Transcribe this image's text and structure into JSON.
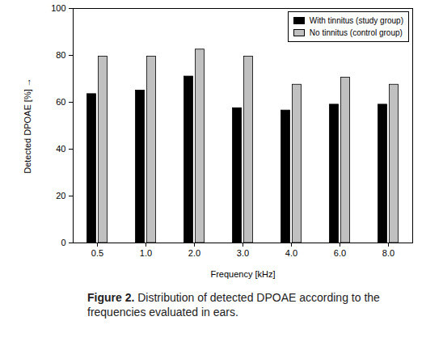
{
  "chart_data": {
    "type": "bar",
    "caption": "Figure 2. Distribution of detected DPOAE according to the frequencies evaluated in ears.",
    "xlabel": "Frequency [kHz]",
    "ylabel": "Detected DPOAE [%]",
    "categories": [
      "0.5",
      "1.0",
      "2.0",
      "3.0",
      "4.0",
      "6.0",
      "8.0"
    ],
    "series": [
      {
        "name": "With tinnitus (study group)",
        "color": "#000000",
        "values": [
          63.5,
          65,
          71,
          57.5,
          56.5,
          59,
          59
        ]
      },
      {
        "name": "No tinnitus (control group)",
        "color": "#c0c0c0",
        "values": [
          79.5,
          79.5,
          82.5,
          79.5,
          67.5,
          70.5,
          67.5
        ]
      }
    ],
    "ylim": [
      0,
      100
    ],
    "yticks": [
      0,
      20,
      40,
      60,
      80,
      100
    ],
    "grid": false,
    "legend": "top-right"
  }
}
